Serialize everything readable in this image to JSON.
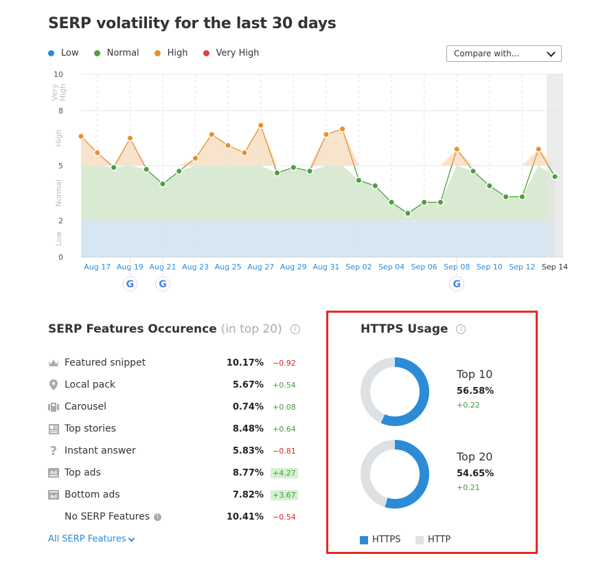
{
  "page": {
    "title": "SERP volatility for the last 30 days"
  },
  "legend": [
    {
      "label": "Low",
      "color": "#2c8bd6"
    },
    {
      "label": "Normal",
      "color": "#4e9f3d"
    },
    {
      "label": "High",
      "color": "#e8912c"
    },
    {
      "label": "Very High",
      "color": "#d8433a"
    }
  ],
  "compare": {
    "label": "Compare with..."
  },
  "chart_data": {
    "type": "line",
    "x": [
      "Aug 16",
      "Aug 17",
      "Aug 18",
      "Aug 19",
      "Aug 20",
      "Aug 21",
      "Aug 22",
      "Aug 23",
      "Aug 24",
      "Aug 25",
      "Aug 26",
      "Aug 27",
      "Aug 28",
      "Aug 29",
      "Aug 30",
      "Aug 31",
      "Sep 01",
      "Sep 02",
      "Sep 03",
      "Sep 04",
      "Sep 05",
      "Sep 06",
      "Sep 07",
      "Sep 08",
      "Sep 09",
      "Sep 10",
      "Sep 11",
      "Sep 12",
      "Sep 13",
      "Sep 14"
    ],
    "values": [
      6.6,
      5.7,
      4.9,
      6.5,
      4.8,
      4.0,
      4.7,
      5.4,
      6.7,
      6.1,
      5.7,
      7.2,
      4.6,
      4.9,
      4.7,
      6.7,
      7.0,
      4.2,
      3.9,
      3.0,
      2.4,
      3.0,
      3.0,
      5.9,
      4.7,
      3.9,
      3.3,
      3.3,
      5.9,
      4.4
    ],
    "tick_labels": [
      "Aug 17",
      "Aug 19",
      "Aug 21",
      "Aug 23",
      "Aug 25",
      "Aug 27",
      "Aug 29",
      "Aug 31",
      "Sep 02",
      "Sep 04",
      "Sep 06",
      "Sep 08",
      "Sep 10",
      "Sep 12",
      "Sep 14"
    ],
    "y_ticks": [
      "0",
      "2",
      "5",
      "8",
      "10"
    ],
    "band_labels": [
      "Very High",
      "High",
      "Normal",
      "Low"
    ],
    "ylim": [
      0,
      10
    ],
    "google_updates": [
      "Aug 19",
      "Aug 21",
      "Sep 08"
    ],
    "colors": {
      "low": "#2c8bd6",
      "normal": "#4e9f3d",
      "high": "#e8912c",
      "very_high": "#d8433a"
    }
  },
  "serp_features": {
    "title": "SERP Features Occurence",
    "subtitle": "(in top 20)",
    "info": "i",
    "rows": [
      {
        "icon": "crown-icon",
        "label": "Featured snippet",
        "pct": "10.17%",
        "delta": "−0.92",
        "trend": "neg",
        "highlight": false
      },
      {
        "icon": "location-pin-icon",
        "label": "Local pack",
        "pct": "5.67%",
        "delta": "+0.54",
        "trend": "pos",
        "highlight": false
      },
      {
        "icon": "carousel-icon",
        "label": "Carousel",
        "pct": "0.74%",
        "delta": "+0.08",
        "trend": "pos",
        "highlight": false
      },
      {
        "icon": "news-icon",
        "label": "Top stories",
        "pct": "8.48%",
        "delta": "+0.64",
        "trend": "pos",
        "highlight": false
      },
      {
        "icon": "question-icon",
        "label": "Instant answer",
        "pct": "5.83%",
        "delta": "−0.81",
        "trend": "neg",
        "highlight": false
      },
      {
        "icon": "ad-top-icon",
        "label": "Top ads",
        "pct": "8.77%",
        "delta": "+4.27",
        "trend": "pos",
        "highlight": true
      },
      {
        "icon": "ad-bottom-icon",
        "label": "Bottom ads",
        "pct": "7.82%",
        "delta": "+3.67",
        "trend": "pos",
        "highlight": true
      },
      {
        "icon": "",
        "label": "No SERP Features",
        "pct": "10.41%",
        "delta": "−0.54",
        "trend": "neg",
        "highlight": false
      }
    ],
    "all_link": "All SERP Features"
  },
  "https": {
    "title": "HTTPS Usage",
    "info": "i",
    "top10": {
      "label": "Top 10",
      "pct": "56.58%",
      "delta": "+0.22",
      "fraction": 0.5658
    },
    "top20": {
      "label": "Top 20",
      "pct": "54.65%",
      "delta": "+0.21",
      "fraction": 0.5465
    },
    "legend_https": "HTTPS",
    "legend_http": "HTTP",
    "colors": {
      "https": "#2c8bd6",
      "http": "#dde1e4"
    }
  }
}
